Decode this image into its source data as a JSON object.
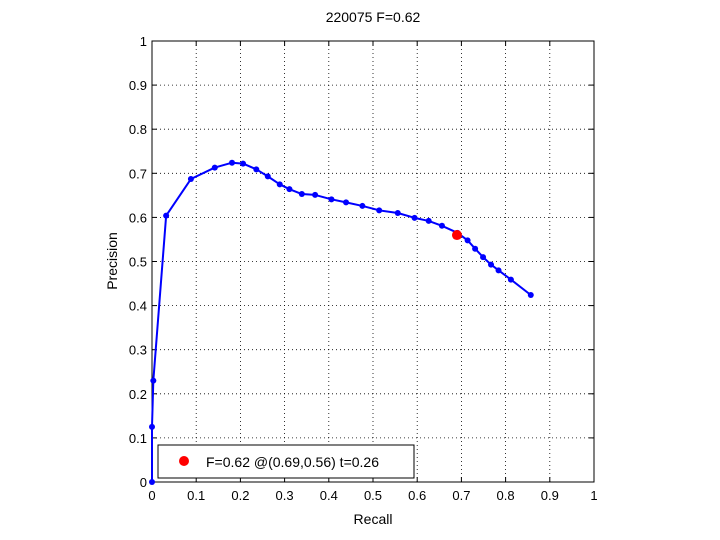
{
  "chart_data": {
    "type": "line",
    "title": "220075 F=0.62",
    "xlabel": "Recall",
    "ylabel": "Precision",
    "xlim": [
      0,
      1
    ],
    "ylim": [
      0,
      1
    ],
    "grid": true,
    "xticks": [
      "0",
      "0.1",
      "0.2",
      "0.3",
      "0.4",
      "0.5",
      "0.6",
      "0.7",
      "0.8",
      "0.9",
      "1"
    ],
    "yticks": [
      "0",
      "0.1",
      "0.2",
      "0.3",
      "0.4",
      "0.5",
      "0.6",
      "0.7",
      "0.8",
      "0.9",
      "1"
    ],
    "series": [
      {
        "color": "#0000ff",
        "x": [
          0.0,
          0.0,
          0.003,
          0.032,
          0.088,
          0.142,
          0.181,
          0.206,
          0.236,
          0.262,
          0.289,
          0.311,
          0.339,
          0.369,
          0.406,
          0.439,
          0.476,
          0.514,
          0.556,
          0.594,
          0.626,
          0.656,
          0.691,
          0.714,
          0.731,
          0.749,
          0.767,
          0.784,
          0.812,
          0.857
        ],
        "y": [
          0.0,
          0.125,
          0.23,
          0.604,
          0.687,
          0.713,
          0.724,
          0.722,
          0.709,
          0.693,
          0.675,
          0.664,
          0.653,
          0.651,
          0.641,
          0.634,
          0.626,
          0.616,
          0.61,
          0.599,
          0.592,
          0.581,
          0.565,
          0.548,
          0.529,
          0.51,
          0.493,
          0.48,
          0.459,
          0.424
        ]
      }
    ],
    "highlight": {
      "x": 0.69,
      "y": 0.56,
      "color": "#ff0000"
    },
    "legend": {
      "label": "F=0.62 @(0.69,0.56) t=0.26",
      "position": "bottom-left"
    }
  }
}
